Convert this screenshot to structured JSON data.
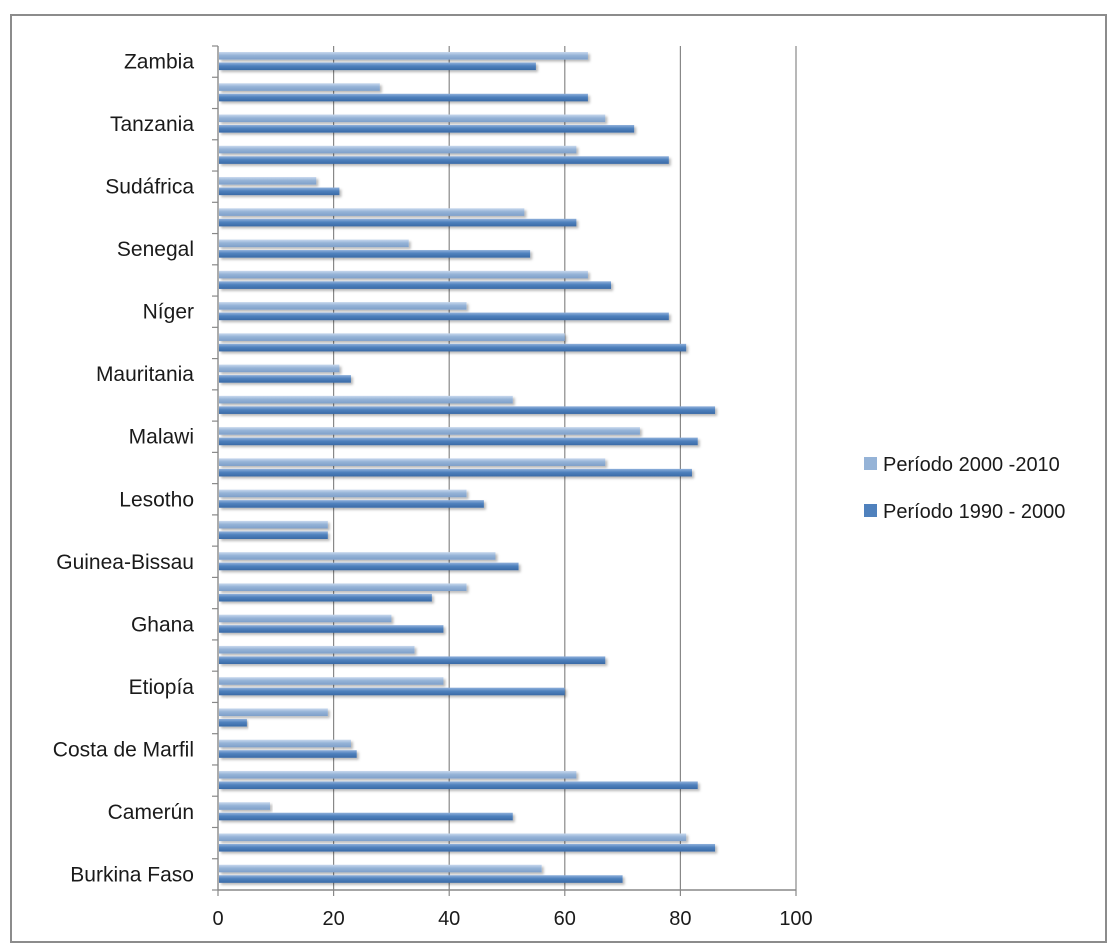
{
  "chart_data": {
    "type": "bar",
    "orientation": "horizontal",
    "title": "",
    "xlabel": "",
    "ylabel": "",
    "xlim": [
      0,
      100
    ],
    "x_ticks": [
      0,
      20,
      40,
      60,
      80,
      100
    ],
    "grid": true,
    "legend_position": "right",
    "labeled_categories": [
      "Zambia",
      "Tanzania",
      "Sudáfrica",
      "Senegal",
      "Níger",
      "Mauritania",
      "Malawi",
      "Lesotho",
      "Guinea-Bissau",
      "Ghana",
      "Etiopía",
      "Costa de Marfil",
      "Camerún",
      "Burkina Faso"
    ],
    "category_slots": [
      "Zambia",
      "",
      "Tanzania",
      "",
      "Sudáfrica",
      "",
      "Senegal",
      "",
      "Níger",
      "",
      "Mauritania",
      "",
      "Malawi",
      "",
      "Lesotho",
      "",
      "Guinea-Bissau",
      "",
      "Ghana",
      "",
      "Etiopía",
      "",
      "Costa de Marfil",
      "",
      "Camerún",
      "",
      "Burkina Faso"
    ],
    "series": [
      {
        "name": "Período 2000 -2010",
        "color": "#95b3d7",
        "values": [
          64,
          28,
          67,
          62,
          17,
          53,
          33,
          64,
          43,
          60,
          21,
          51,
          73,
          67,
          43,
          19,
          48,
          43,
          30,
          34,
          39,
          19,
          23,
          62,
          9,
          81,
          56
        ]
      },
      {
        "name": "Período 1990 - 2000",
        "color": "#4f81bd",
        "values": [
          55,
          64,
          72,
          78,
          21,
          62,
          54,
          68,
          78,
          81,
          23,
          86,
          83,
          82,
          46,
          19,
          52,
          37,
          39,
          67,
          60,
          5,
          24,
          83,
          51,
          86,
          70
        ]
      }
    ]
  }
}
